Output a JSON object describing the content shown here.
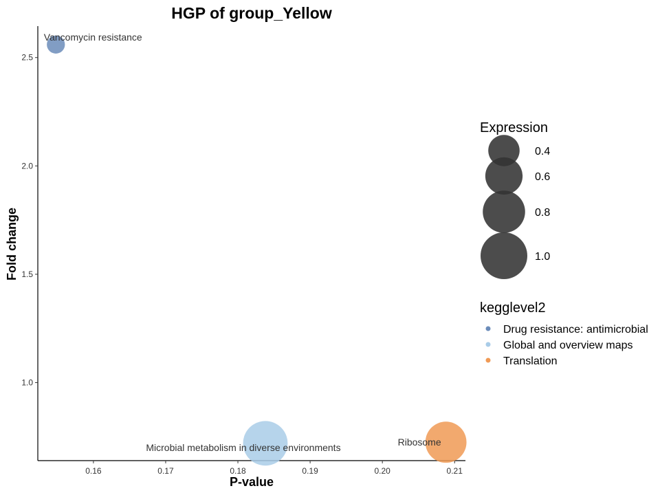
{
  "chart_data": {
    "type": "scatter",
    "title": "HGP of group_Yellow",
    "xlabel": "P-value",
    "ylabel": "Fold change",
    "xlim": [
      0.1523,
      0.2115
    ],
    "ylim": [
      0.64,
      2.645
    ],
    "x_ticks": [
      0.16,
      0.17,
      0.18,
      0.19,
      0.2,
      0.21
    ],
    "x_tick_labels": [
      "0.16",
      "0.17",
      "0.18",
      "0.19",
      "0.20",
      "0.21"
    ],
    "y_ticks": [
      1.0,
      1.5,
      2.0,
      2.5
    ],
    "y_tick_labels": [
      "1.0",
      "1.5",
      "2.0",
      "2.5"
    ],
    "points": [
      {
        "label": "Vancomycin resistance",
        "x": 0.1548,
        "y": 2.56,
        "expression": 0.1,
        "category": "Drug resistance: antimicrobial"
      },
      {
        "label": "Microbial metabolism in diverse environments",
        "x": 0.1838,
        "y": 0.72,
        "expression": 0.9,
        "category": "Global and overview maps"
      },
      {
        "label": "Ribosome",
        "x": 0.2088,
        "y": 0.725,
        "expression": 0.75,
        "category": "Translation"
      }
    ],
    "legend_size": {
      "title": "Expression",
      "entries": [
        {
          "label": "0.4",
          "value": 0.4
        },
        {
          "label": "0.6",
          "value": 0.6
        },
        {
          "label": "0.8",
          "value": 0.8
        },
        {
          "label": "1.0",
          "value": 1.0
        }
      ]
    },
    "legend_color": {
      "title": "kegglevel2",
      "entries": [
        {
          "label": "Drug resistance: antimicrobial",
          "color": "#6b8cba"
        },
        {
          "label": "Global and overview maps",
          "color": "#a9cce8"
        },
        {
          "label": "Translation",
          "color": "#f09a55"
        }
      ]
    },
    "legend_position": "right",
    "grid": false
  }
}
